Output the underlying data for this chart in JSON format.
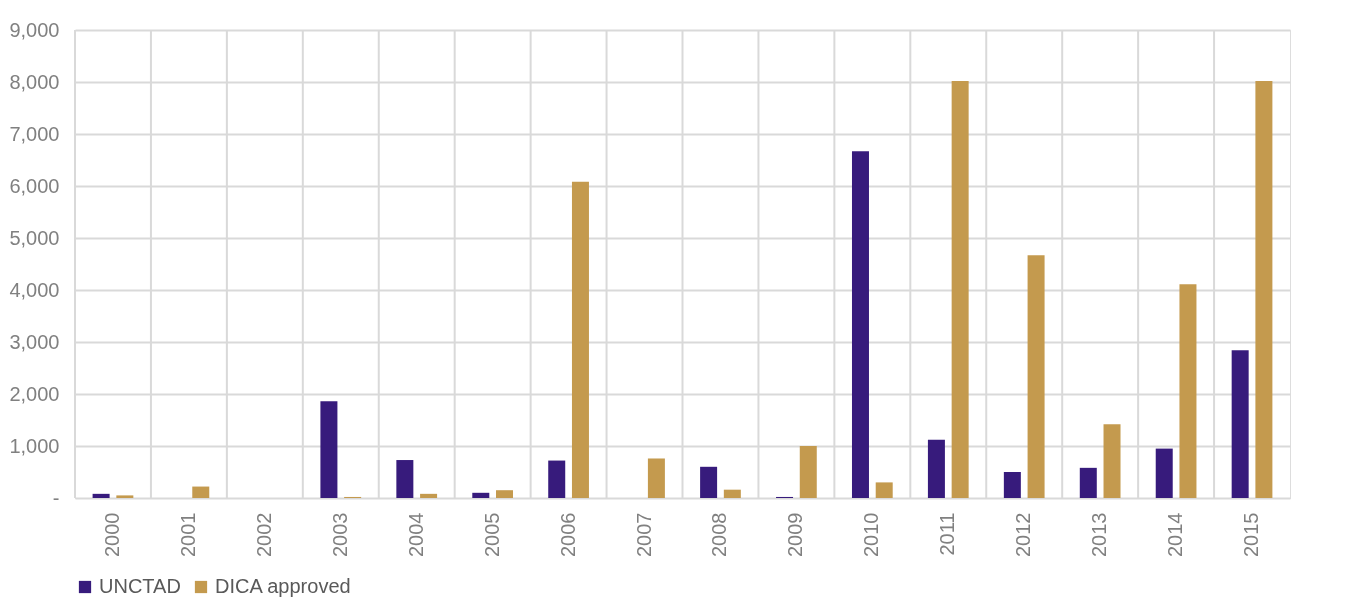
{
  "chart_data": {
    "type": "bar",
    "categories": [
      "2000",
      "2001",
      "2002",
      "2003",
      "2004",
      "2005",
      "2006",
      "2007",
      "2008",
      "2009",
      "2010",
      "2011",
      "2012",
      "2013",
      "2014",
      "2015"
    ],
    "series": [
      {
        "name": "UNCTAD",
        "color": "#371b7c",
        "values": [
          80,
          null,
          null,
          1860,
          730,
          100,
          720,
          null,
          600,
          20,
          6670,
          1120,
          500,
          580,
          950,
          2840
        ]
      },
      {
        "name": "DICA approved",
        "color": "#c49a4e",
        "values": [
          50,
          220,
          null,
          20,
          80,
          150,
          6080,
          760,
          160,
          1000,
          300,
          8020,
          4670,
          1420,
          4110,
          8020
        ]
      }
    ],
    "ylim": [
      0,
      9000
    ],
    "yticks": [
      {
        "value": 0,
        "label": "-"
      },
      {
        "value": 1000,
        "label": "1,000"
      },
      {
        "value": 2000,
        "label": "2,000"
      },
      {
        "value": 3000,
        "label": "3,000"
      },
      {
        "value": 4000,
        "label": "4,000"
      },
      {
        "value": 5000,
        "label": "5,000"
      },
      {
        "value": 6000,
        "label": "6,000"
      },
      {
        "value": 7000,
        "label": "7,000"
      },
      {
        "value": 8000,
        "label": "8,000"
      },
      {
        "value": 9000,
        "label": "9,000"
      }
    ],
    "grid": true,
    "legend": "bottom"
  }
}
